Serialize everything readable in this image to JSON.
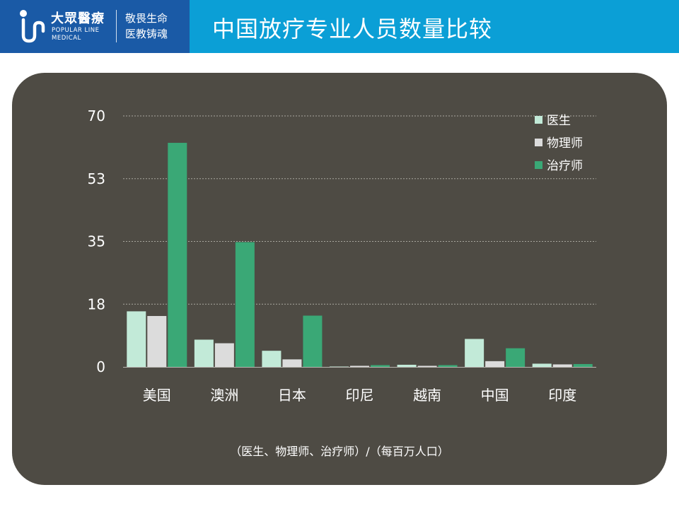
{
  "header": {
    "logo_cn": "大眾醫療",
    "logo_en_1": "POPULAR LINE",
    "logo_en_2": "MEDICAL",
    "slogan_1": "敬畏生命",
    "slogan_2": "医教铸魂",
    "title": "中国放疗专业人员数量比较",
    "colors": {
      "header": "#0b9fd6",
      "logo_box": "#1a5aa6"
    }
  },
  "chart_data": {
    "type": "bar",
    "categories": [
      "美国",
      "澳洲",
      "日本",
      "印尼",
      "越南",
      "中国",
      "印度"
    ],
    "series": [
      {
        "name": "医生",
        "color": "#c2ead8",
        "values": [
          15.5,
          7.6,
          4.5,
          0.1,
          0.6,
          7.8,
          0.9
        ]
      },
      {
        "name": "物理师",
        "color": "#dcdcdc",
        "values": [
          14.2,
          6.6,
          2.1,
          0.3,
          0.3,
          1.6,
          0.7
        ]
      },
      {
        "name": "治疗师",
        "color": "#3aa876",
        "values": [
          62.5,
          34.8,
          14.3,
          0.5,
          0.5,
          5.2,
          0.8
        ]
      }
    ],
    "yticks": [
      "0",
      "18",
      "35",
      "53",
      "70"
    ],
    "ylim": [
      0,
      70
    ],
    "grid": true,
    "legend_position": "top-right",
    "note": "（医生、物理师、治疗师）/（每百万人口）"
  }
}
